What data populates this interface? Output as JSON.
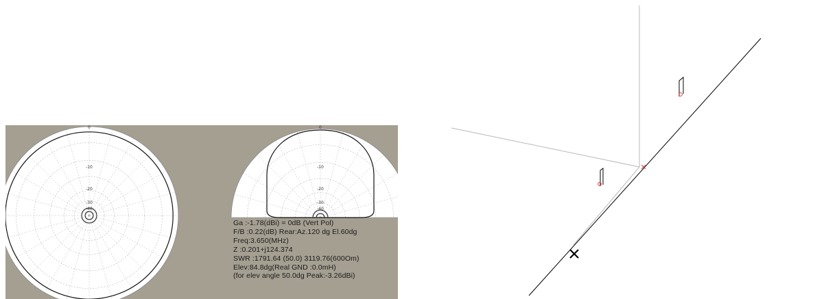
{
  "colors": {
    "panel_background": "#a59f92",
    "plot_face": "#ffffff",
    "grid": "#b8b8b8",
    "pattern_trace": "#111111",
    "wire": "#000000",
    "axis": "#b8b8b8",
    "source_marker": "#d04040"
  },
  "azimuth_plot": {
    "tick_labels": [
      "0",
      "-10",
      "-20",
      "-30",
      "-40"
    ]
  },
  "elevation_plot": {
    "tick_labels": [
      "0",
      "-10",
      "-20",
      "-30",
      "-40"
    ]
  },
  "readout": {
    "lines": [
      "Ga :-1.78(dBi) = 0dB  (Vert Pol)",
      "F/B :0.22(dB) Rear:Az.120 dg El.60dg",
      "Freq:3.650(MHz)",
      "Z  :0.201+j124.374",
      "SWR :1791.64 (50.0)  3119.76(600Om)",
      "Elev:84.8dg(Real GND :0.0mH)",
      "(for elev angle 50.0dg Peak:-3.26dBi)"
    ]
  },
  "geometry_view": {
    "icons": [
      "feed-point-marker",
      "cursor-x-marker"
    ]
  }
}
